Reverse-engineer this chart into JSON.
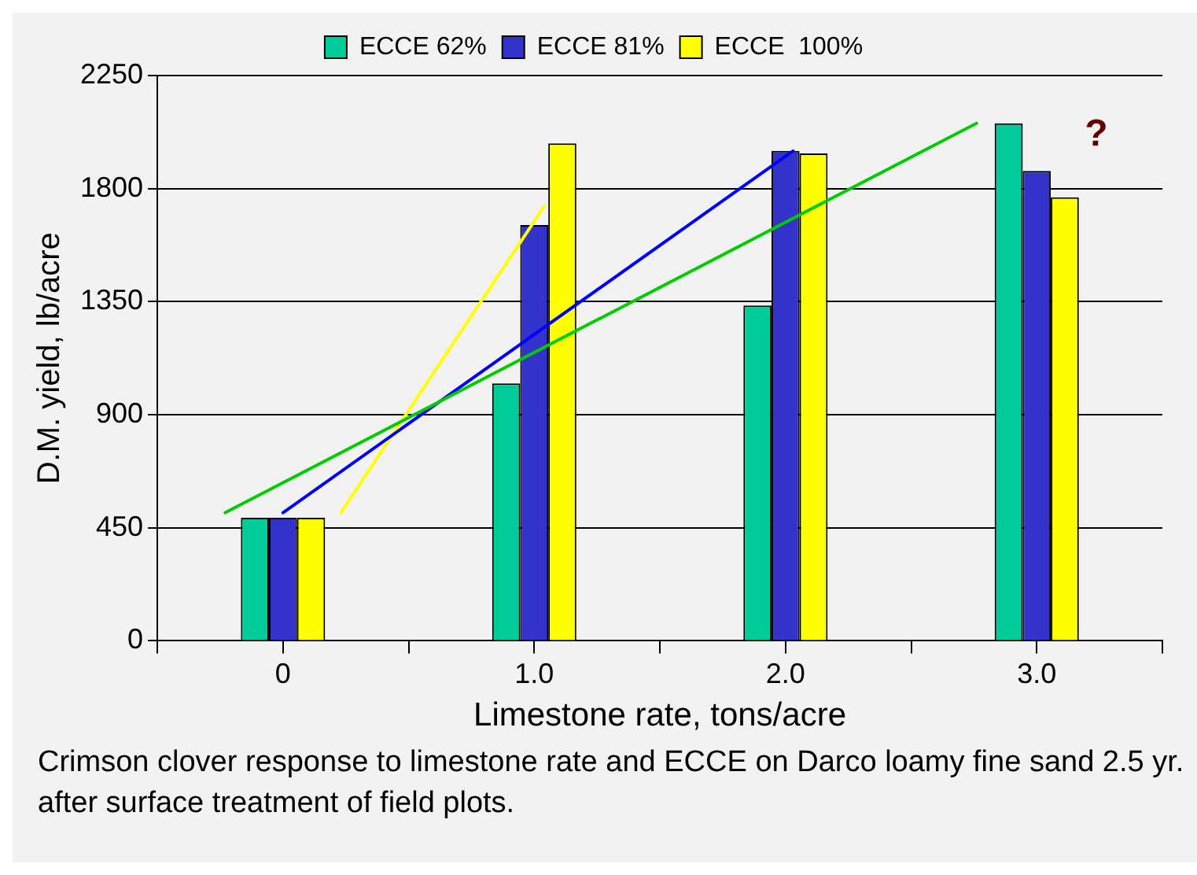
{
  "chart_data": {
    "type": "bar",
    "xlabel": "Limestone rate, tons/acre",
    "ylabel": "D.M. yield, lb/acre",
    "x": [
      0,
      1,
      2,
      3
    ],
    "xlim": [
      -0.5,
      3.5
    ],
    "xticks": [
      {
        "value": -0.5,
        "label": null
      },
      {
        "value": 0,
        "label": "0"
      },
      {
        "value": 0.5,
        "label": null
      },
      {
        "value": 1,
        "label": "1.0"
      },
      {
        "value": 1.5,
        "label": null
      },
      {
        "value": 2,
        "label": "2.0"
      },
      {
        "value": 2.5,
        "label": null
      },
      {
        "value": 3,
        "label": "3.0"
      },
      {
        "value": 3.5,
        "label": null
      }
    ],
    "ylim": [
      0,
      2250
    ],
    "yticks": [
      0,
      450,
      900,
      1350,
      1800,
      2250
    ],
    "series": [
      {
        "name": "ECCE 62%",
        "color": "#00cc99",
        "values": [
          490,
          1025,
          1335,
          2060
        ]
      },
      {
        "name": "ECCE 81%",
        "color": "#3333cc",
        "values": [
          490,
          1655,
          1950,
          1870
        ]
      },
      {
        "name": "ECCE  100%",
        "color": "#ffff00",
        "values": [
          490,
          1980,
          1940,
          1765
        ]
      },
      {
        "type": "line",
        "color": "#00cc00",
        "x": [
          -0.23,
          2.76
        ],
        "values": [
          510,
          2060
        ]
      },
      {
        "type": "line",
        "color": "#0000ff",
        "x": [
          0,
          2.03
        ],
        "values": [
          510,
          1950
        ]
      },
      {
        "type": "line",
        "color": "#ffff00",
        "x": [
          0.23,
          1.04
        ],
        "values": [
          510,
          1730
        ]
      }
    ],
    "grid": "y",
    "legend": "top",
    "marker": "none",
    "annotations": [
      "?",
      "Crimson clover response to limestone rate and ECCE on Darco loamy fine sand 2.5 yr. after surface treatment of field plots."
    ]
  }
}
